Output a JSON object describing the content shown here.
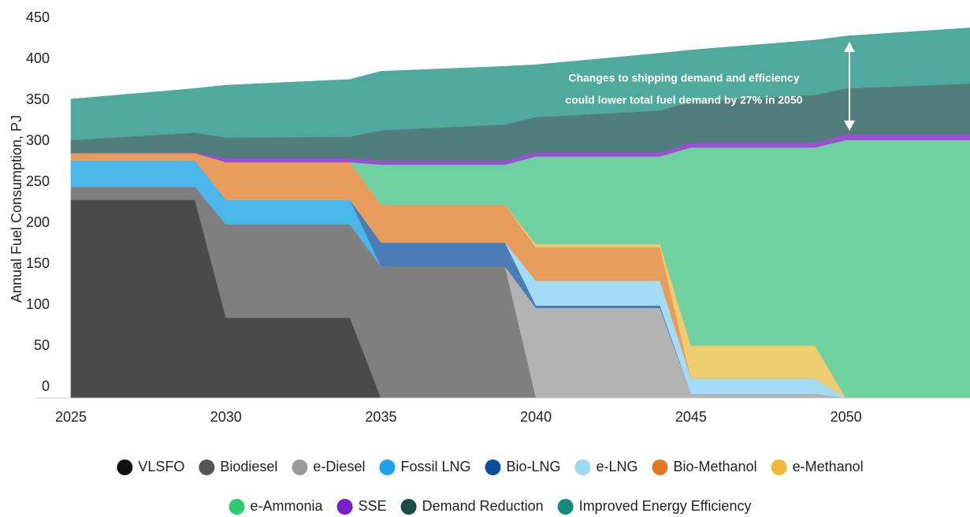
{
  "chart_data": {
    "type": "stacked_area",
    "ylabel": "Annual Fuel Consumption, PJ",
    "annotation": [
      "Changes to shipping demand and efficiency",
      "could lower total fuel demand by 27% in 2050"
    ],
    "x": [
      2025,
      2029,
      2030,
      2034,
      2035,
      2039,
      2040,
      2044,
      2045,
      2049,
      2050,
      2054
    ],
    "xlim": [
      2025,
      2054
    ],
    "xticks": [
      2025,
      2030,
      2035,
      2040,
      2045,
      2050
    ],
    "ylim": [
      0,
      460
    ],
    "yticks": [
      0,
      50,
      100,
      150,
      200,
      250,
      300,
      350,
      400,
      450
    ],
    "series": [
      {
        "name": "VLSFO",
        "color": "#4a4a4a",
        "legend_color": "#111111",
        "values": [
          242,
          242,
          98,
          98,
          0,
          0,
          0,
          0,
          0,
          0,
          0,
          0
        ]
      },
      {
        "name": "Biodiesel",
        "color": "#7f7f7f",
        "legend_color": "#555555",
        "values": [
          16,
          16,
          114,
          114,
          161,
          161,
          0,
          0,
          0,
          0,
          0,
          0
        ]
      },
      {
        "name": "e-Diesel",
        "color": "#b3b3b3",
        "legend_color": "#999999",
        "values": [
          0,
          0,
          0,
          0,
          0,
          0,
          110,
          110,
          5,
          5,
          0,
          0
        ]
      },
      {
        "name": "Fossil LNG",
        "color": "#4bb6ea",
        "legend_color": "#1aa3e8",
        "values": [
          32,
          32,
          30,
          30,
          0,
          0,
          0,
          0,
          0,
          0,
          0,
          0
        ]
      },
      {
        "name": "Bio-LNG",
        "color": "#4a7db5",
        "legend_color": "#0a4f9c",
        "values": [
          0,
          0,
          0,
          0,
          29,
          29,
          3,
          3,
          0,
          0,
          0,
          0
        ]
      },
      {
        "name": "e-LNG",
        "color": "#a5dcf5",
        "legend_color": "#9ad8f5",
        "values": [
          0,
          0,
          0,
          0,
          0,
          0,
          30,
          30,
          19,
          19,
          0,
          0
        ]
      },
      {
        "name": "Bio-Methanol",
        "color": "#e89c5c",
        "legend_color": "#e07a1f",
        "values": [
          9,
          9,
          46,
          46,
          46,
          46,
          41,
          41,
          0,
          0,
          0,
          0
        ]
      },
      {
        "name": "e-Methanol",
        "color": "#f0cc70",
        "legend_color": "#f0b93a",
        "values": [
          0,
          0,
          0,
          0,
          0,
          0,
          4,
          4,
          40,
          40,
          0,
          0
        ]
      },
      {
        "name": "e-Ammonia",
        "color": "#6fd19f",
        "legend_color": "#2ecc71",
        "values": [
          0,
          0,
          0,
          0,
          49,
          49,
          107,
          107,
          242,
          242,
          315,
          315
        ]
      },
      {
        "name": "SSE",
        "color": "#9b4fd1",
        "legend_color": "#7b1fc7",
        "values": [
          0,
          1,
          5,
          5,
          5,
          5,
          5,
          5,
          6,
          6,
          7,
          7
        ]
      },
      {
        "name": "Demand Reduction",
        "color": "#527d7d",
        "legend_color": "#1a4d44",
        "values": [
          16,
          24,
          25,
          26,
          37,
          44,
          43,
          51,
          50,
          58,
          56,
          62
        ]
      },
      {
        "name": "Improved Energy Efficiency",
        "color": "#4fa99c",
        "legend_color": "#16897a",
        "values": [
          50,
          54,
          64,
          70,
          72,
          71,
          64,
          70,
          63,
          67,
          64,
          68
        ]
      }
    ]
  }
}
